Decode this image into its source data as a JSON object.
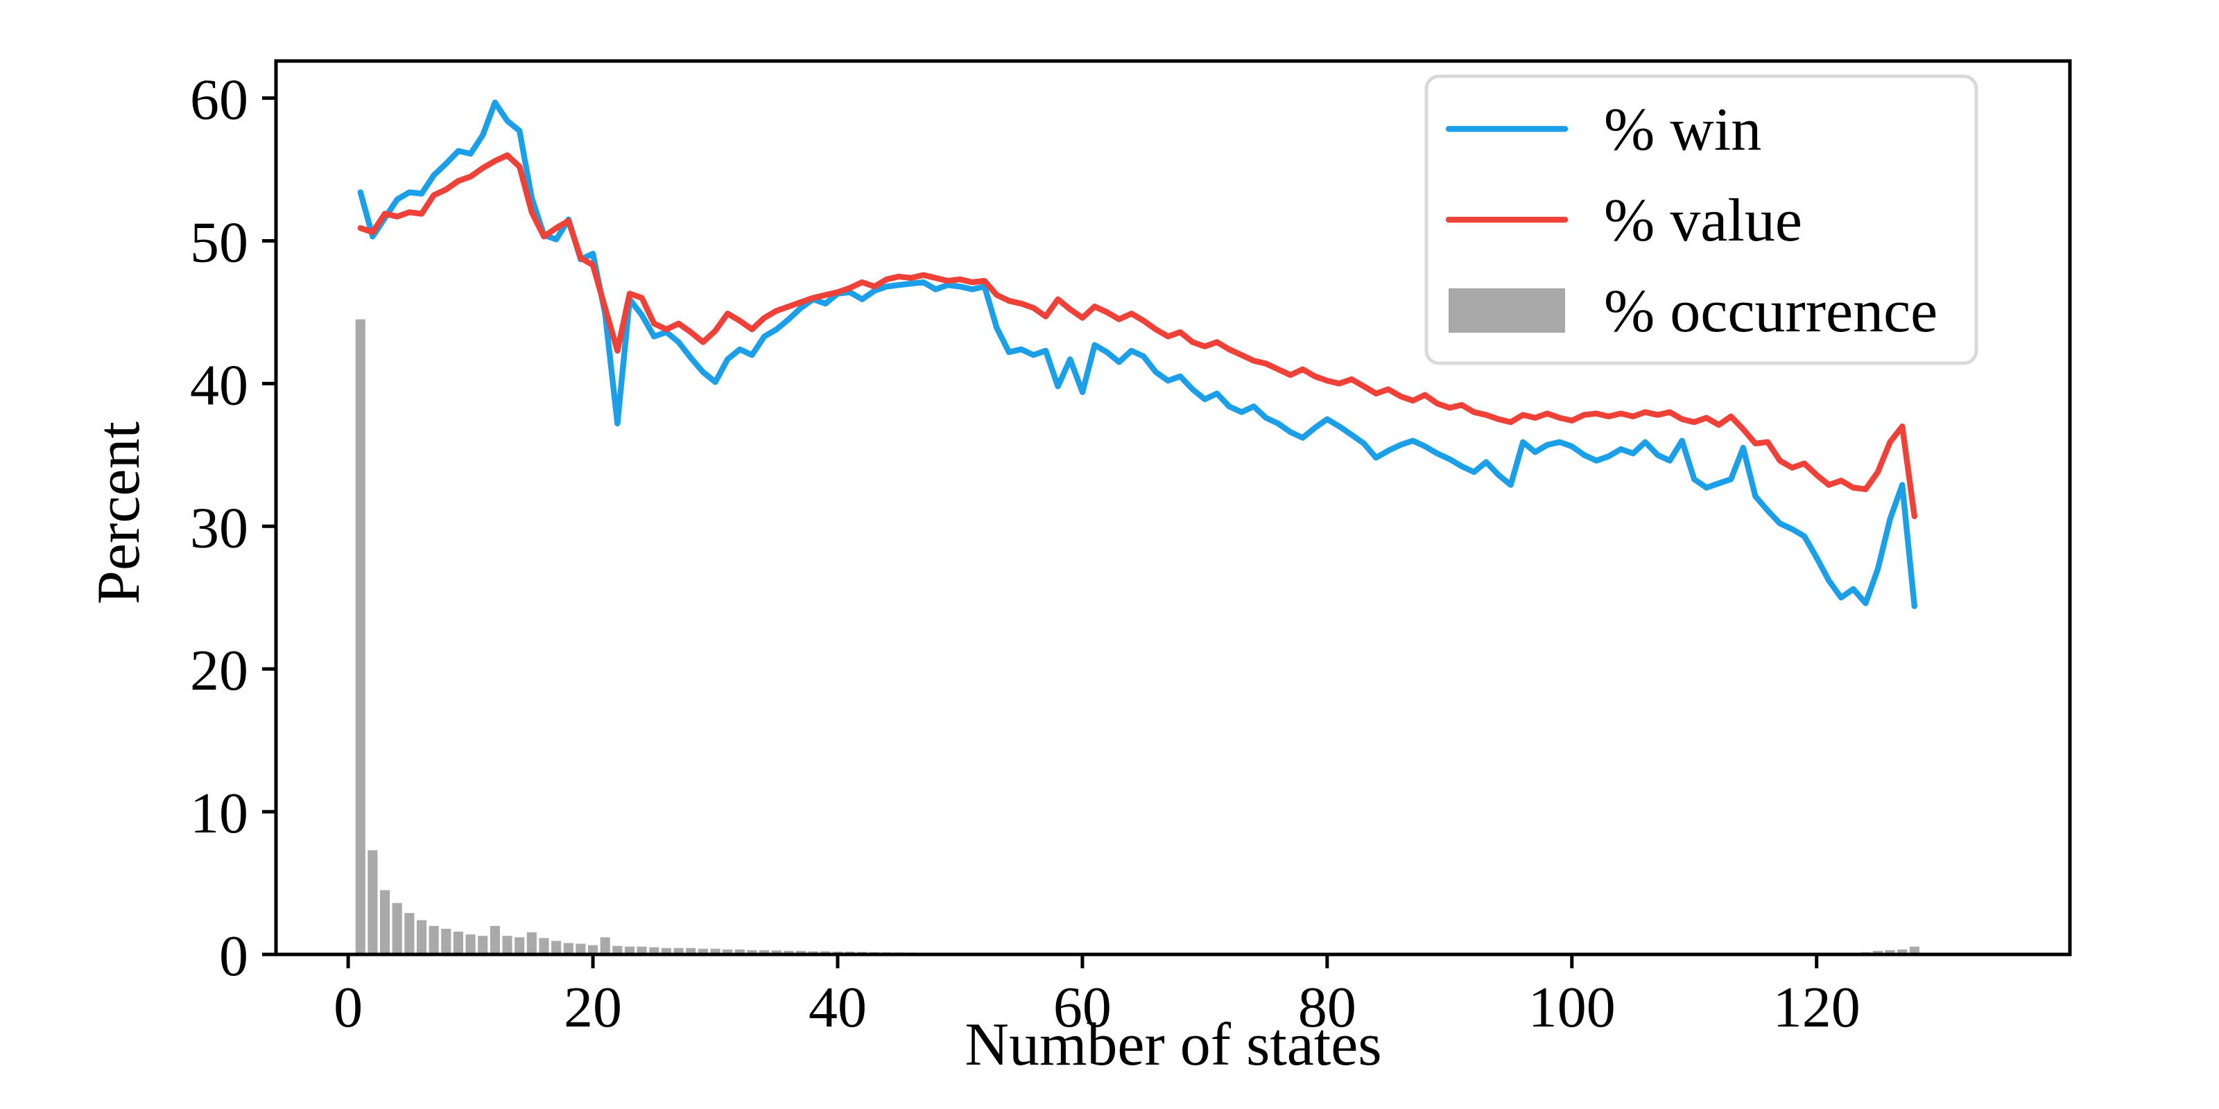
{
  "chart_data": {
    "type": "combo",
    "title": "",
    "xlabel": "Number of states",
    "ylabel": "Percent",
    "x_start": 1,
    "xlim": [
      -5.9,
      140.7
    ],
    "ylim": [
      0,
      62.6
    ],
    "xticks": [
      0,
      20,
      40,
      60,
      80,
      100,
      120
    ],
    "yticks": [
      0,
      10,
      20,
      30,
      40,
      50,
      60
    ],
    "grid": false,
    "legend_position": "upper right",
    "colors": {
      "win": "#1B9FE8",
      "value": "#EF4137",
      "occurrence": "#A9A9A9",
      "legend_border": "#D9D9D9",
      "axis": "#000000"
    },
    "legend": [
      {
        "label": "% win",
        "kind": "line",
        "color": "#1B9FE8"
      },
      {
        "label": "% value",
        "kind": "line",
        "color": "#EF4137"
      },
      {
        "label": "% occurrence",
        "kind": "bar",
        "color": "#A9A9A9"
      }
    ],
    "series": [
      {
        "name": "% win",
        "kind": "line",
        "color": "#1B9FE8",
        "values": [
          53.4,
          50.3,
          51.6,
          52.9,
          53.4,
          53.3,
          54.6,
          55.4,
          56.3,
          56.1,
          57.4,
          59.7,
          58.4,
          57.7,
          53.0,
          50.4,
          50.1,
          51.5,
          48.7,
          49.1,
          44.9,
          37.2,
          45.9,
          44.8,
          43.3,
          43.6,
          42.9,
          41.8,
          40.8,
          40.1,
          41.7,
          42.4,
          42.0,
          43.3,
          43.8,
          44.5,
          45.3,
          45.9,
          45.6,
          46.3,
          46.4,
          45.9,
          46.5,
          46.8,
          46.9,
          47.0,
          47.1,
          46.6,
          46.9,
          46.8,
          46.6,
          46.8,
          43.9,
          42.2,
          42.4,
          42.0,
          42.3,
          39.8,
          41.7,
          39.4,
          42.7,
          42.2,
          41.5,
          42.3,
          41.9,
          40.8,
          40.2,
          40.5,
          39.6,
          38.9,
          39.3,
          38.4,
          38.0,
          38.4,
          37.6,
          37.2,
          36.6,
          36.2,
          36.9,
          37.5,
          37.0,
          36.4,
          35.8,
          34.8,
          35.3,
          35.7,
          36.0,
          35.6,
          35.1,
          34.7,
          34.2,
          33.8,
          34.5,
          33.6,
          32.9,
          35.9,
          35.2,
          35.7,
          35.9,
          35.6,
          35.0,
          34.6,
          34.9,
          35.4,
          35.1,
          35.9,
          35.0,
          34.6,
          36.0,
          33.3,
          32.7,
          33.0,
          33.3,
          35.5,
          32.1,
          31.1,
          30.2,
          29.8,
          29.3,
          27.8,
          26.2,
          25.0,
          25.6,
          24.6,
          27.0,
          30.5,
          32.9,
          24.4
        ]
      },
      {
        "name": "% value",
        "kind": "line",
        "color": "#EF4137",
        "values": [
          50.9,
          50.6,
          51.9,
          51.7,
          52.0,
          51.9,
          53.2,
          53.6,
          54.2,
          54.5,
          55.1,
          55.6,
          56.0,
          55.2,
          52.0,
          50.3,
          50.9,
          51.4,
          48.8,
          48.3,
          45.3,
          42.3,
          46.3,
          46.0,
          44.2,
          43.8,
          44.2,
          43.6,
          42.9,
          43.7,
          44.9,
          44.4,
          43.8,
          44.6,
          45.1,
          45.4,
          45.7,
          46.0,
          46.2,
          46.4,
          46.7,
          47.1,
          46.8,
          47.3,
          47.5,
          47.4,
          47.6,
          47.4,
          47.2,
          47.3,
          47.1,
          47.2,
          46.2,
          45.8,
          45.6,
          45.3,
          44.7,
          45.9,
          45.2,
          44.6,
          45.4,
          45.0,
          44.5,
          44.9,
          44.4,
          43.8,
          43.3,
          43.6,
          42.9,
          42.6,
          42.9,
          42.4,
          42.0,
          41.6,
          41.4,
          41.0,
          40.6,
          41.0,
          40.5,
          40.2,
          40.0,
          40.3,
          39.8,
          39.3,
          39.6,
          39.1,
          38.8,
          39.2,
          38.6,
          38.3,
          38.5,
          38.0,
          37.8,
          37.5,
          37.3,
          37.8,
          37.6,
          37.9,
          37.6,
          37.4,
          37.8,
          37.9,
          37.7,
          37.9,
          37.7,
          38.0,
          37.8,
          38.0,
          37.5,
          37.3,
          37.6,
          37.1,
          37.7,
          36.8,
          35.8,
          35.9,
          34.6,
          34.1,
          34.4,
          33.6,
          32.9,
          33.2,
          32.7,
          32.6,
          33.8,
          35.9,
          37.0,
          30.7
        ]
      },
      {
        "name": "% occurrence",
        "kind": "bar",
        "color": "#A9A9A9",
        "bar_width": 0.8,
        "values": [
          44.5,
          7.3,
          4.5,
          3.6,
          2.9,
          2.4,
          2.0,
          1.8,
          1.6,
          1.4,
          1.3,
          2.0,
          1.3,
          1.2,
          1.55,
          1.15,
          0.95,
          0.8,
          0.75,
          0.65,
          1.2,
          0.6,
          0.55,
          0.55,
          0.5,
          0.45,
          0.45,
          0.45,
          0.4,
          0.4,
          0.35,
          0.35,
          0.3,
          0.3,
          0.28,
          0.25,
          0.25,
          0.22,
          0.22,
          0.2,
          0.2,
          0.18,
          0.16,
          0.15,
          0.14,
          0.13,
          0.12,
          0.11,
          0.1,
          0.1,
          0.09,
          0.09,
          0.08,
          0.08,
          0.07,
          0.07,
          0.06,
          0.06,
          0.06,
          0.05,
          0.05,
          0.05,
          0.05,
          0.04,
          0.04,
          0.04,
          0.04,
          0.03,
          0.03,
          0.03,
          0.03,
          0.03,
          0.02,
          0.02,
          0.02,
          0.02,
          0.02,
          0.02,
          0.02,
          0.02,
          0.01,
          0.01,
          0.01,
          0.01,
          0.01,
          0.01,
          0.01,
          0.01,
          0.01,
          0.01,
          0.01,
          0.01,
          0.01,
          0.01,
          0.01,
          0.01,
          0.01,
          0.01,
          0.01,
          0.01,
          0.0,
          0.0,
          0.0,
          0.0,
          0.0,
          0.0,
          0.0,
          0.0,
          0.0,
          0.0,
          0.0,
          0.0,
          0.0,
          0.0,
          0.0,
          0.0,
          0.0,
          0.0,
          0.0,
          0.0,
          0.0,
          0.0,
          0.0,
          0.15,
          0.25,
          0.3,
          0.35,
          0.55
        ]
      }
    ]
  }
}
